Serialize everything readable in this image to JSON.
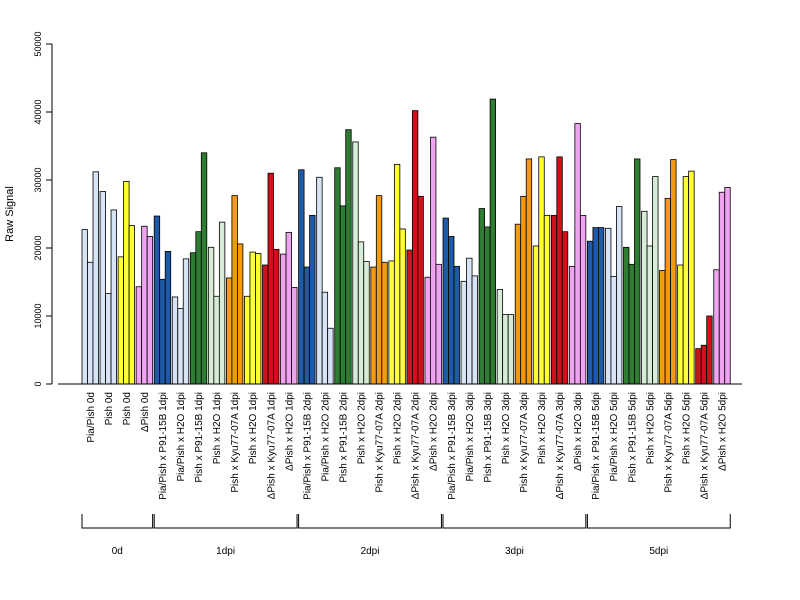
{
  "chart_data": {
    "type": "bar",
    "title": "",
    "xlabel": "",
    "ylabel": "Raw Signal",
    "ylim": [
      0,
      50000
    ],
    "yticks": [
      0,
      10000,
      20000,
      30000,
      40000,
      50000
    ],
    "grid": false,
    "legend": "none",
    "colors": {
      "lightblue": "#d6e4f5",
      "yellow": "#ffff33",
      "violet": "#f0a3f0",
      "blue": "#1f5aa6",
      "darkgreen": "#2e7d32",
      "lightgreen": "#d6ecd6",
      "orange": "#f39a10",
      "red": "#d0101a"
    },
    "categories": [
      {
        "label": "Pia/Pish 0d",
        "color": "lightblue",
        "values": [
          22700,
          17900,
          31200
        ]
      },
      {
        "label": "Pish 0d",
        "color": "lightblue",
        "values": [
          28300,
          13300,
          25600
        ]
      },
      {
        "label": "Pish 0d",
        "color": "yellow",
        "values": [
          18700,
          29800,
          23300
        ]
      },
      {
        "label": "ΔPish 0d",
        "color": "violet",
        "values": [
          14300,
          23200,
          21700
        ]
      },
      {
        "label": "Pia/Pish x P91-15B 1dpi",
        "color": "blue",
        "values": [
          24700,
          15400,
          19500
        ]
      },
      {
        "label": "Pia/Pish x H2O 1dpi",
        "color": "lightblue",
        "values": [
          12800,
          11100,
          18400
        ]
      },
      {
        "label": "Pish x P91-15B 1dpi",
        "color": "darkgreen",
        "values": [
          19300,
          22400,
          34000
        ]
      },
      {
        "label": "Pish x H2O 1dpi",
        "color": "lightgreen",
        "values": [
          20100,
          12900,
          23800
        ]
      },
      {
        "label": "Pish x Kyu77-07A 1dpi",
        "color": "orange",
        "values": [
          15600,
          27700,
          20600
        ]
      },
      {
        "label": "Pish x H2O 1dpi",
        "color": "yellow",
        "values": [
          12900,
          19400,
          19200
        ]
      },
      {
        "label": "ΔPish x Kyu77-07A 1dpi",
        "color": "red",
        "values": [
          17500,
          31000,
          19800
        ]
      },
      {
        "label": "ΔPish x H2O 1dpi",
        "color": "violet",
        "values": [
          19100,
          22300,
          14200
        ]
      },
      {
        "label": "Pia/Pish x P91-15B 2dpi",
        "color": "blue",
        "values": [
          31500,
          17200,
          24800
        ]
      },
      {
        "label": "Pia/Pish x H2O 2dpi",
        "color": "lightblue",
        "values": [
          30400,
          13500,
          8200
        ]
      },
      {
        "label": "Pish x P91-15B 2dpi",
        "color": "darkgreen",
        "values": [
          31800,
          26200,
          37400
        ]
      },
      {
        "label": "Pish x H2O 2dpi",
        "color": "lightgreen",
        "values": [
          35600,
          20900,
          18000
        ]
      },
      {
        "label": "Pish x Kyu77-07A 2dpi",
        "color": "orange",
        "values": [
          17200,
          27700,
          17900
        ]
      },
      {
        "label": "Pish x H2O 2dpi",
        "color": "yellow",
        "values": [
          18100,
          32300,
          22800
        ]
      },
      {
        "label": "ΔPish x Kyu77-07A 2dpi",
        "color": "red",
        "values": [
          19700,
          40200,
          27600
        ]
      },
      {
        "label": "ΔPish x H2O 2dpi",
        "color": "violet",
        "values": [
          15700,
          36300,
          17600
        ]
      },
      {
        "label": "Pia/Pish x P91-15B 3dpi",
        "color": "blue",
        "values": [
          24400,
          21700,
          17300
        ]
      },
      {
        "label": "Pia/Pish x H2O 3dpi",
        "color": "lightblue",
        "values": [
          15100,
          18500,
          15900
        ]
      },
      {
        "label": "Pish x P91-15B 3dpi",
        "color": "darkgreen",
        "values": [
          25800,
          23100,
          41900
        ]
      },
      {
        "label": "Pish x H2O 3dpi",
        "color": "lightgreen",
        "values": [
          13900,
          10200,
          10200
        ]
      },
      {
        "label": "Pish x Kyu77-07A 3dpi",
        "color": "orange",
        "values": [
          23500,
          27600,
          33100
        ]
      },
      {
        "label": "Pish x H2O 3dpi",
        "color": "yellow",
        "values": [
          20300,
          33400,
          24800
        ]
      },
      {
        "label": "ΔPish x Kyu77-07A 3dpi",
        "color": "red",
        "values": [
          24800,
          33400,
          22400
        ]
      },
      {
        "label": "ΔPish x H2O 3dpi",
        "color": "violet",
        "values": [
          17300,
          38300,
          24800
        ]
      },
      {
        "label": "Pia/Pish x P91-15B 5dpi",
        "color": "blue",
        "values": [
          21000,
          23000,
          23000
        ]
      },
      {
        "label": "Pia/Pish x H2O 5dpi",
        "color": "lightblue",
        "values": [
          22900,
          15800,
          26100
        ]
      },
      {
        "label": "Pish x P91-15B 5dpi",
        "color": "darkgreen",
        "values": [
          20100,
          17600,
          33100
        ]
      },
      {
        "label": "Pish x H2O 5dpi",
        "color": "lightgreen",
        "values": [
          25400,
          20300,
          30500
        ]
      },
      {
        "label": "Pish x Kyu77-07A 5dpi",
        "color": "orange",
        "values": [
          16700,
          27300,
          33000
        ]
      },
      {
        "label": "Pish x H2O 5dpi",
        "color": "yellow",
        "values": [
          17500,
          30500,
          31300
        ]
      },
      {
        "label": "ΔPish x Kyu77-07A 5dpi",
        "color": "red",
        "values": [
          5200,
          5700,
          10000
        ]
      },
      {
        "label": "ΔPish x H2O 5dpi",
        "color": "violet",
        "values": [
          16800,
          28200,
          28900
        ]
      }
    ],
    "groups": [
      {
        "label": "0d",
        "count": 4
      },
      {
        "label": "1dpi",
        "count": 8
      },
      {
        "label": "2dpi",
        "count": 8
      },
      {
        "label": "3dpi",
        "count": 8
      },
      {
        "label": "5dpi",
        "count": 8
      }
    ]
  }
}
